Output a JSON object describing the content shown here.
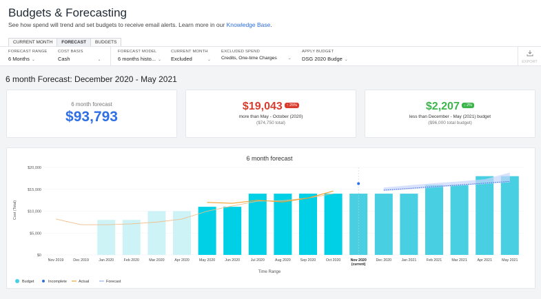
{
  "header": {
    "title": "Budgets & Forecasting",
    "subtitle": "See how spend will trend and set budgets to receive email alerts. Learn more in our",
    "link": "Knowledge Base",
    "link_suffix": "."
  },
  "tabs": [
    "CURRENT MONTH",
    "FORECAST",
    "BUDGETS"
  ],
  "active_tab": "FORECAST",
  "toolbar": {
    "forecast_range": {
      "label": "FORECAST RANGE",
      "value": "6 Months"
    },
    "cost_basis": {
      "label": "COST BASIS",
      "value": "Cash"
    },
    "forecast_model": {
      "label": "FORECAST MODEL",
      "value": "6 months histo..."
    },
    "current_month": {
      "label": "CURRENT MONTH",
      "value": "Excluded"
    },
    "excluded_spend": {
      "label": "EXCLUDED SPEND",
      "value": "Credits, One-time Charges"
    },
    "apply_budget": {
      "label": "APPLY BUDGET",
      "value": "DSG 2020 Budge"
    },
    "export": "EXPORT"
  },
  "page_heading": "6 month Forecast: December 2020 - May 2021",
  "cards": {
    "forecast": {
      "label": "6 month forecast",
      "value": "$93,793"
    },
    "vs_previous": {
      "value": "$19,043",
      "badge": "↑ 25%",
      "desc": "more than May - October (2020)",
      "sub": "($74,750 total)"
    },
    "vs_budget": {
      "value": "$2,207",
      "badge": "↓ 2%",
      "desc": "less than December - May (2021) budget",
      "sub": "($96,000 total budget)"
    }
  },
  "colors": {
    "accent_blue": "#2f6fe4",
    "red": "#d93c2c",
    "green": "#3cb64a",
    "bar_historic": "#cdf3f7",
    "bar_actual": "#00d0e6",
    "bar_forecast": "#48cfe2",
    "actual_line": "#f5a02c",
    "forecast_line": "#f0be8a"
  },
  "chart_data": {
    "type": "bar",
    "title": "6 month forecast",
    "xlabel": "Time Range",
    "ylabel": "Cost (Total)",
    "ylim": [
      0,
      20000
    ],
    "yticks": [
      "$0",
      "$5,000",
      "$10,000",
      "$15,000",
      "$20,000"
    ],
    "categories": [
      "Nov 2019",
      "Dec 2019",
      "Jan 2020",
      "Feb 2020",
      "Mar 2020",
      "Apr 2020",
      "May 2020",
      "Jun 2020",
      "Jul 2020",
      "Aug 2020",
      "Sep 2020",
      "Oct 2020",
      "Nov 2020",
      "Dec 2020",
      "Jan 2021",
      "Feb 2021",
      "Mar 2021",
      "Apr 2021",
      "May 2021"
    ],
    "current_sublabel": "(current)",
    "series": [
      {
        "name": "Budget",
        "values": [
          null,
          null,
          8000,
          8000,
          10000,
          10000,
          11000,
          11000,
          14000,
          14000,
          14000,
          14000,
          14000,
          14000,
          14000,
          16000,
          16000,
          18000,
          18000
        ]
      },
      {
        "name": "Incomplete",
        "values": [
          null,
          null,
          null,
          null,
          null,
          null,
          null,
          null,
          null,
          null,
          null,
          null,
          16300,
          null,
          null,
          null,
          null,
          null,
          null
        ]
      },
      {
        "name": "Actual",
        "values": [
          null,
          null,
          null,
          null,
          null,
          null,
          12000,
          11800,
          12500,
          12100,
          13000,
          14600,
          null,
          null,
          null,
          null,
          null,
          null,
          null
        ]
      },
      {
        "name": "Forecast",
        "values": [
          8200,
          6900,
          6900,
          7100,
          7500,
          8200,
          10000,
          11200,
          12300,
          12400,
          13000,
          14000,
          null,
          14800,
          15200,
          15600,
          16000,
          16400,
          16800
        ]
      }
    ],
    "forecast_band": {
      "lower": [
        14600,
        15000,
        15400,
        15800,
        16200,
        16600
      ],
      "upper": [
        15400,
        15900,
        16400,
        16800,
        17300,
        18800
      ]
    },
    "legend": [
      "Budget",
      "Incomplete",
      "Actual",
      "Forecast"
    ],
    "legend_position": "bottom-left"
  }
}
